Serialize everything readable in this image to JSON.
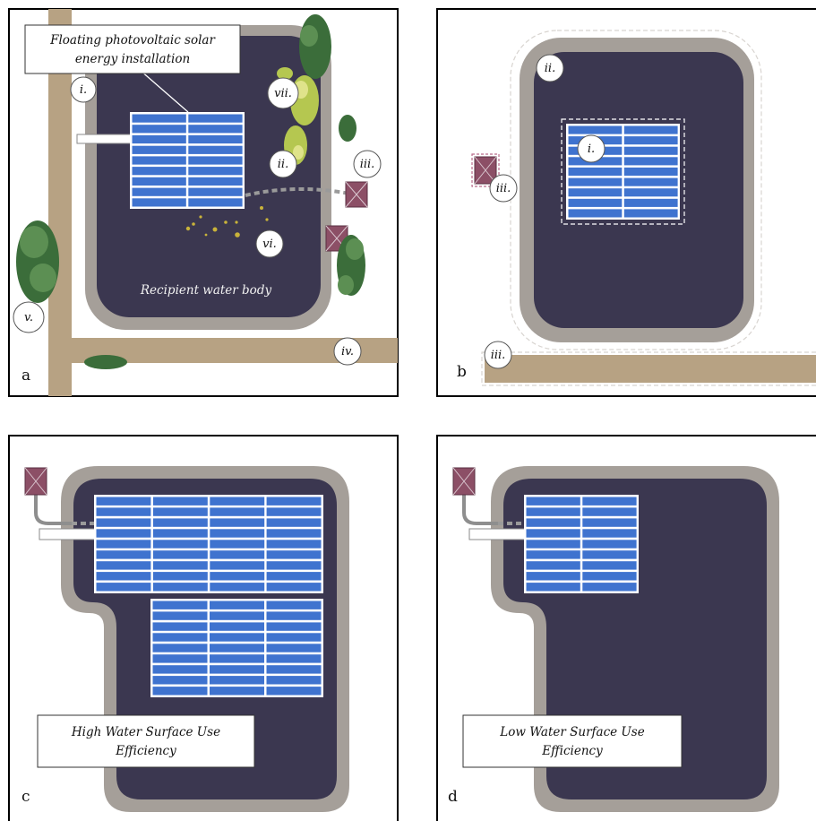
{
  "panel_a": {
    "letter": "a",
    "callout_line1": "Floating photovoltaic solar",
    "callout_line2": "energy installation",
    "water_label": "Recipient  water body",
    "markers": {
      "i": "i.",
      "ii": "ii.",
      "iii": "iii.",
      "iv": "iv.",
      "v": "v.",
      "vi": "vi.",
      "vii": "vii."
    }
  },
  "panel_b": {
    "letter": "b",
    "markers": {
      "i": "i.",
      "ii": "ii.",
      "iii_house": "iii.",
      "iii_road": "iii."
    }
  },
  "panel_c": {
    "letter": "c",
    "label_line1": "High Water Surface  Use",
    "label_line2": "Efficiency"
  },
  "panel_d": {
    "letter": "d",
    "label_line1": "Low Water Surface  Use",
    "label_line2": "Efficiency"
  },
  "colors": {
    "water": "#3b3750",
    "rim": "#a59f99",
    "road": "#b7a283",
    "solar_panel": "#3f73cf",
    "house": "#8c4f66",
    "vegetation": "#3b6d3a"
  }
}
